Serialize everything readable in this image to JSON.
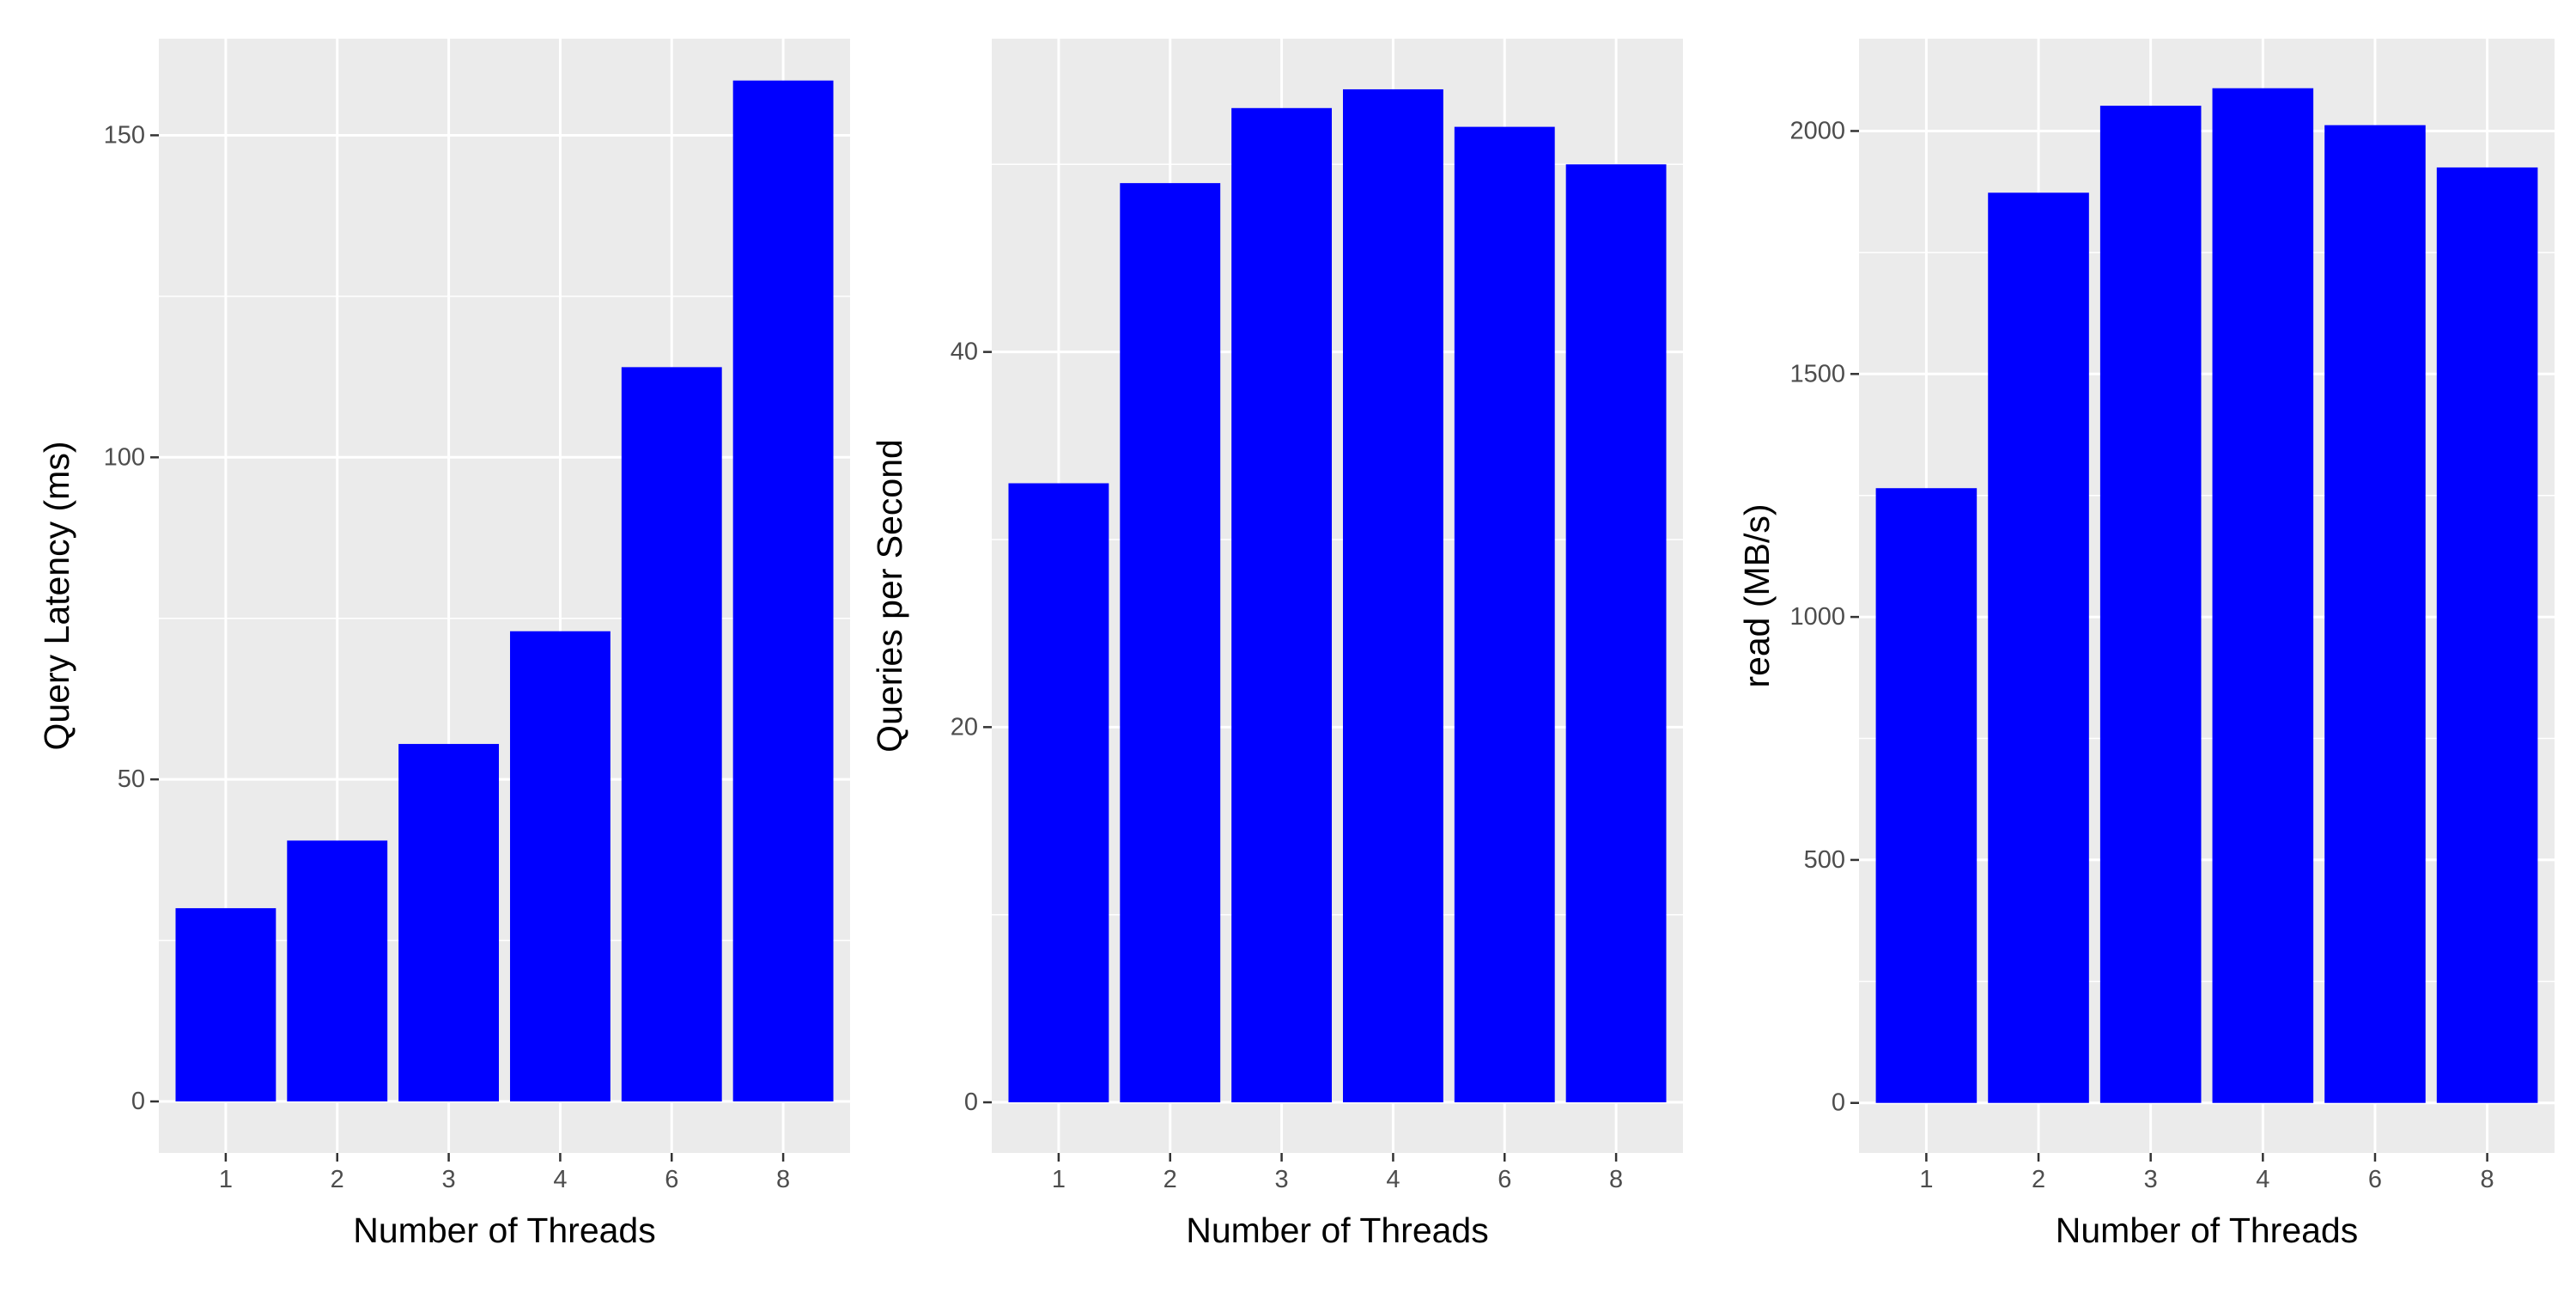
{
  "chart_data": [
    {
      "type": "bar",
      "categories": [
        "1",
        "2",
        "3",
        "4",
        "6",
        "8"
      ],
      "values": [
        30,
        40.5,
        55.5,
        73,
        114,
        158.5
      ],
      "xlabel": "Number of Threads",
      "ylabel": "Query Latency (ms)",
      "ylim": [
        -8,
        165
      ],
      "yticks": [
        0,
        50,
        100,
        150
      ],
      "grid": true,
      "bar_color": "#0000ff"
    },
    {
      "type": "bar",
      "categories": [
        "1",
        "2",
        "3",
        "4",
        "6",
        "8"
      ],
      "values": [
        33,
        49,
        53,
        54,
        52,
        50
      ],
      "xlabel": "Number of Threads",
      "ylabel": "Queries per Second",
      "ylim": [
        -2.7,
        56.7
      ],
      "yticks": [
        0,
        20,
        40
      ],
      "grid": true,
      "bar_color": "#0000ff"
    },
    {
      "type": "bar",
      "categories": [
        "1",
        "2",
        "3",
        "4",
        "6",
        "8"
      ],
      "values": [
        1265,
        1873,
        2052,
        2088,
        2012,
        1925
      ],
      "xlabel": "Number of Threads",
      "ylabel": "read (MB/s)",
      "ylim": [
        -103,
        2190
      ],
      "yticks": [
        0,
        500,
        1000,
        1500,
        2000
      ],
      "grid": true,
      "bar_color": "#0000ff"
    }
  ],
  "colors": {
    "panel_background": "#ebebeb",
    "gridline": "#ffffff",
    "bar": "#0000ff"
  }
}
